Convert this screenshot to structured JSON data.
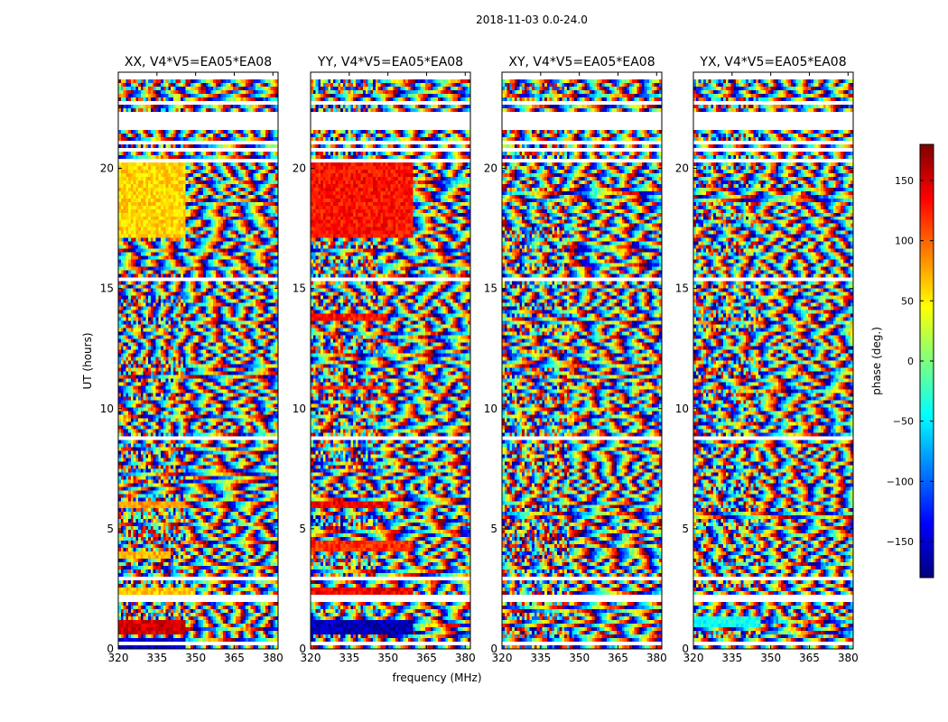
{
  "chart_data": {
    "type": "heatmap",
    "suptitle": "2018-11-03 0.0-24.0",
    "xlabel": "frequency (MHz)",
    "ylabel": "UT (hours)",
    "xlim": [
      320,
      382
    ],
    "ylim": [
      0,
      24
    ],
    "xticks": [
      320,
      335,
      350,
      365,
      380
    ],
    "yticks": [
      0,
      5,
      10,
      15,
      20
    ],
    "panels": [
      {
        "name": "xx",
        "title": "XX, V4*V5=EA05*EA08",
        "pol": "XX"
      },
      {
        "name": "yy",
        "title": "YY, V4*V5=EA05*EA08",
        "pol": "YY"
      },
      {
        "name": "xy",
        "title": "XY, V4*V5=EA05*EA08",
        "pol": "XY"
      },
      {
        "name": "yx",
        "title": "YX, V4*V5=EA05*EA08",
        "pol": "YX"
      }
    ],
    "colorbar": {
      "label": "phase (deg.)",
      "range": [
        -180,
        180
      ],
      "ticks": [
        -150,
        -100,
        -50,
        0,
        50,
        100,
        150
      ],
      "colormap": "jet",
      "colors": [
        "#00007f",
        "#0000ff",
        "#007fff",
        "#00ffff",
        "#7fff7f",
        "#ffff00",
        "#ff7f00",
        "#ff0000",
        "#7f0000"
      ]
    },
    "blank_ut_ranges": [
      [
        0.18,
        0.25
      ],
      [
        0.55,
        0.62
      ],
      [
        2.0,
        2.08
      ],
      [
        2.15,
        2.3
      ],
      [
        2.9,
        3.0
      ],
      [
        3.55,
        3.62
      ],
      [
        4.6,
        4.66
      ],
      [
        5.95,
        6.0
      ],
      [
        7.95,
        8.0
      ],
      [
        8.75,
        8.85
      ],
      [
        11.8,
        11.85
      ],
      [
        15.35,
        15.45
      ],
      [
        16.2,
        16.25
      ],
      [
        17.85,
        17.9
      ],
      [
        18.7,
        18.75
      ],
      [
        20.3,
        20.35
      ],
      [
        20.7,
        20.78
      ],
      [
        21.05,
        21.1
      ],
      [
        21.3,
        21.35
      ],
      [
        21.65,
        22.4
      ],
      [
        22.7,
        22.75
      ],
      [
        22.95,
        23.0
      ],
      [
        23.25,
        23.3
      ],
      [
        23.65,
        24.0
      ]
    ],
    "solid_regions": {
      "xx": [
        {
          "ut": [
            17.1,
            20.2
          ],
          "freq": [
            320,
            346
          ],
          "phase": 60
        },
        {
          "ut": [
            0.6,
            1.2
          ],
          "freq": [
            320,
            346
          ],
          "phase": 150
        },
        {
          "ut": [
            0.0,
            0.4
          ],
          "freq": [
            320,
            346
          ],
          "phase": -150
        },
        {
          "ut": [
            2.3,
            2.6
          ],
          "freq": [
            320,
            350
          ],
          "phase": 65
        },
        {
          "ut": [
            5.8,
            6.2
          ],
          "freq": [
            320,
            346
          ],
          "phase": 80
        },
        {
          "ut": [
            3.7,
            4.1
          ],
          "freq": [
            320,
            340
          ],
          "phase": 70
        }
      ],
      "yy": [
        {
          "ut": [
            17.1,
            20.2
          ],
          "freq": [
            320,
            360
          ],
          "phase": 130
        },
        {
          "ut": [
            19.8,
            20.2
          ],
          "freq": [
            320,
            360
          ],
          "phase": 160
        },
        {
          "ut": [
            0.6,
            1.2
          ],
          "freq": [
            320,
            360
          ],
          "phase": -160
        },
        {
          "ut": [
            2.3,
            2.6
          ],
          "freq": [
            320,
            360
          ],
          "phase": 140
        },
        {
          "ut": [
            5.8,
            6.2
          ],
          "freq": [
            320,
            350
          ],
          "phase": 140
        },
        {
          "ut": [
            4.1,
            4.5
          ],
          "freq": [
            320,
            360
          ],
          "phase": 120
        },
        {
          "ut": [
            13.6,
            13.9
          ],
          "freq": [
            320,
            350
          ],
          "phase": 130
        },
        {
          "ut": [
            10.8,
            11.0
          ],
          "freq": [
            320,
            350
          ],
          "phase": 120
        }
      ],
      "xy": [],
      "yx": [
        {
          "ut": [
            0.9,
            1.3
          ],
          "freq": [
            320,
            346
          ],
          "phase": -40
        }
      ]
    }
  }
}
